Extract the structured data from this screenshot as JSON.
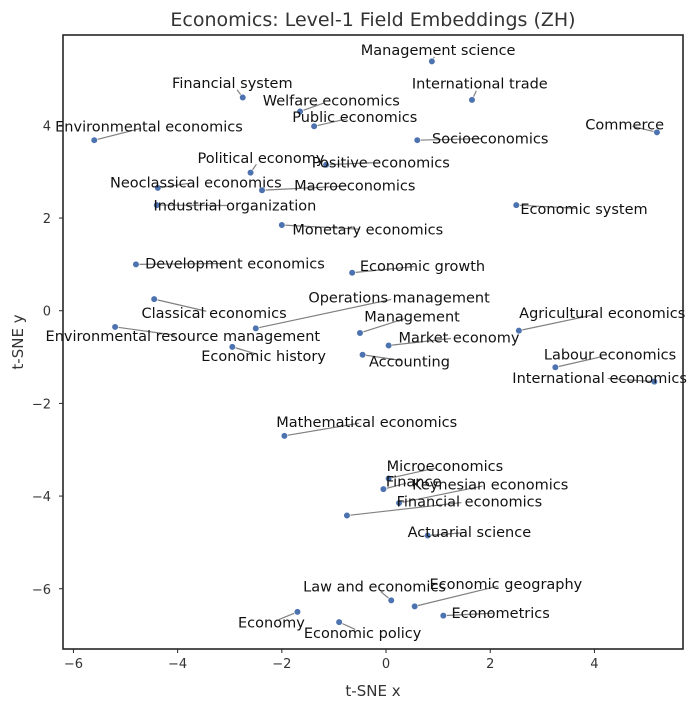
{
  "chart_data": {
    "type": "scatter",
    "title": "Economics: Level-1 Field Embeddings (ZH)",
    "xlabel": "t-SNE x",
    "ylabel": "t-SNE y",
    "xlim": [
      -6.2,
      5.7
    ],
    "ylim": [
      -7.3,
      5.95
    ],
    "xticks": [
      -6,
      -4,
      -2,
      0,
      2,
      4
    ],
    "yticks": [
      -6,
      -4,
      -2,
      0,
      2,
      4
    ],
    "xtick_labels": [
      "−6",
      "−4",
      "−2",
      "0",
      "2",
      "4"
    ],
    "ytick_labels": [
      "−6",
      "−4",
      "−2",
      "0",
      "2",
      "4"
    ],
    "grid": false,
    "points": [
      {
        "name": "Management science",
        "x": 0.88,
        "y": 5.38,
        "lx": 1.0,
        "ly": 5.63
      },
      {
        "name": "Financial system",
        "x": -2.75,
        "y": 4.6,
        "lx": -2.95,
        "ly": 4.91
      },
      {
        "name": "International trade",
        "x": 1.65,
        "y": 4.55,
        "lx": 1.8,
        "ly": 4.9
      },
      {
        "name": "Welfare economics",
        "x": -1.65,
        "y": 4.3,
        "lx": -1.05,
        "ly": 4.54
      },
      {
        "name": "Public economics",
        "x": -1.38,
        "y": 3.98,
        "lx": -0.6,
        "ly": 4.18
      },
      {
        "name": "Commerce",
        "x": 5.2,
        "y": 3.85,
        "lx": 4.58,
        "ly": 4.02
      },
      {
        "name": "Environmental economics",
        "x": -5.6,
        "y": 3.68,
        "lx": -4.55,
        "ly": 3.98
      },
      {
        "name": "Socioeconomics",
        "x": 0.6,
        "y": 3.68,
        "lx": 2.0,
        "ly": 3.72
      },
      {
        "name": "Political economy",
        "x": -2.6,
        "y": 2.98,
        "lx": -2.4,
        "ly": 3.3
      },
      {
        "name": "Positive economics",
        "x": -1.15,
        "y": 3.15,
        "lx": -0.1,
        "ly": 3.2
      },
      {
        "name": "Neoclassical economics",
        "x": -4.38,
        "y": 2.65,
        "lx": -3.65,
        "ly": 2.77
      },
      {
        "name": "Macroeconomics",
        "x": -2.38,
        "y": 2.6,
        "lx": -0.6,
        "ly": 2.7
      },
      {
        "name": "Industrial organization",
        "x": -4.4,
        "y": 2.28,
        "lx": -2.9,
        "ly": 2.27
      },
      {
        "name": "Economic system",
        "x": 2.5,
        "y": 2.28,
        "lx": 3.8,
        "ly": 2.2
      },
      {
        "name": "Monetary economics",
        "x": -2.0,
        "y": 1.85,
        "lx": -0.35,
        "ly": 1.75
      },
      {
        "name": "Development economics",
        "x": -4.8,
        "y": 1.0,
        "lx": -2.9,
        "ly": 1.02
      },
      {
        "name": "Economic growth",
        "x": -0.65,
        "y": 0.82,
        "lx": 0.7,
        "ly": 0.97
      },
      {
        "name": "Classical economics",
        "x": -4.45,
        "y": 0.25,
        "lx": -3.3,
        "ly": -0.05
      },
      {
        "name": "Operations management",
        "x": -2.5,
        "y": -0.38,
        "lx": 0.25,
        "ly": 0.28
      },
      {
        "name": "Agricultural economics",
        "x": 2.55,
        "y": -0.43,
        "lx": 4.15,
        "ly": -0.05
      },
      {
        "name": "Environmental resource management",
        "x": -5.2,
        "y": -0.35,
        "lx": -3.9,
        "ly": -0.55
      },
      {
        "name": "Management",
        "x": -0.5,
        "y": -0.48,
        "lx": 0.5,
        "ly": -0.12
      },
      {
        "name": "Market economy",
        "x": 0.05,
        "y": -0.75,
        "lx": 1.4,
        "ly": -0.58
      },
      {
        "name": "Economic history",
        "x": -2.95,
        "y": -0.78,
        "lx": -2.35,
        "ly": -0.98
      },
      {
        "name": "Accounting",
        "x": -0.45,
        "y": -0.95,
        "lx": 0.45,
        "ly": -1.1
      },
      {
        "name": "Labour economics",
        "x": 3.25,
        "y": -1.22,
        "lx": 4.3,
        "ly": -0.95
      },
      {
        "name": "International economics",
        "x": 5.15,
        "y": -1.53,
        "lx": 4.1,
        "ly": -1.45
      },
      {
        "name": "Mathematical economics",
        "x": -1.95,
        "y": -2.7,
        "lx": -0.37,
        "ly": -2.4
      },
      {
        "name": "Microeconomics",
        "x": 0.05,
        "y": -3.62,
        "lx": 1.13,
        "ly": -3.35
      },
      {
        "name": "Finance",
        "x": -0.05,
        "y": -3.85,
        "lx": 0.53,
        "ly": -3.68
      },
      {
        "name": "Keynesian economics",
        "x": 0.25,
        "y": -4.15,
        "lx": 2.0,
        "ly": -3.75
      },
      {
        "name": "Financial economics",
        "x": -0.75,
        "y": -4.42,
        "lx": 1.6,
        "ly": -4.12
      },
      {
        "name": "Actuarial science",
        "x": 0.8,
        "y": -4.85,
        "lx": 1.6,
        "ly": -4.78
      },
      {
        "name": "Law and economics",
        "x": 0.1,
        "y": -6.25,
        "lx": -0.22,
        "ly": -5.95
      },
      {
        "name": "Economic geography",
        "x": 0.55,
        "y": -6.38,
        "lx": 2.3,
        "ly": -5.9
      },
      {
        "name": "Econometrics",
        "x": 1.1,
        "y": -6.58,
        "lx": 2.2,
        "ly": -6.52
      },
      {
        "name": "Economy",
        "x": -1.7,
        "y": -6.5,
        "lx": -2.2,
        "ly": -6.73
      },
      {
        "name": "Economic policy",
        "x": -0.9,
        "y": -6.72,
        "lx": -0.45,
        "ly": -6.95
      }
    ]
  }
}
